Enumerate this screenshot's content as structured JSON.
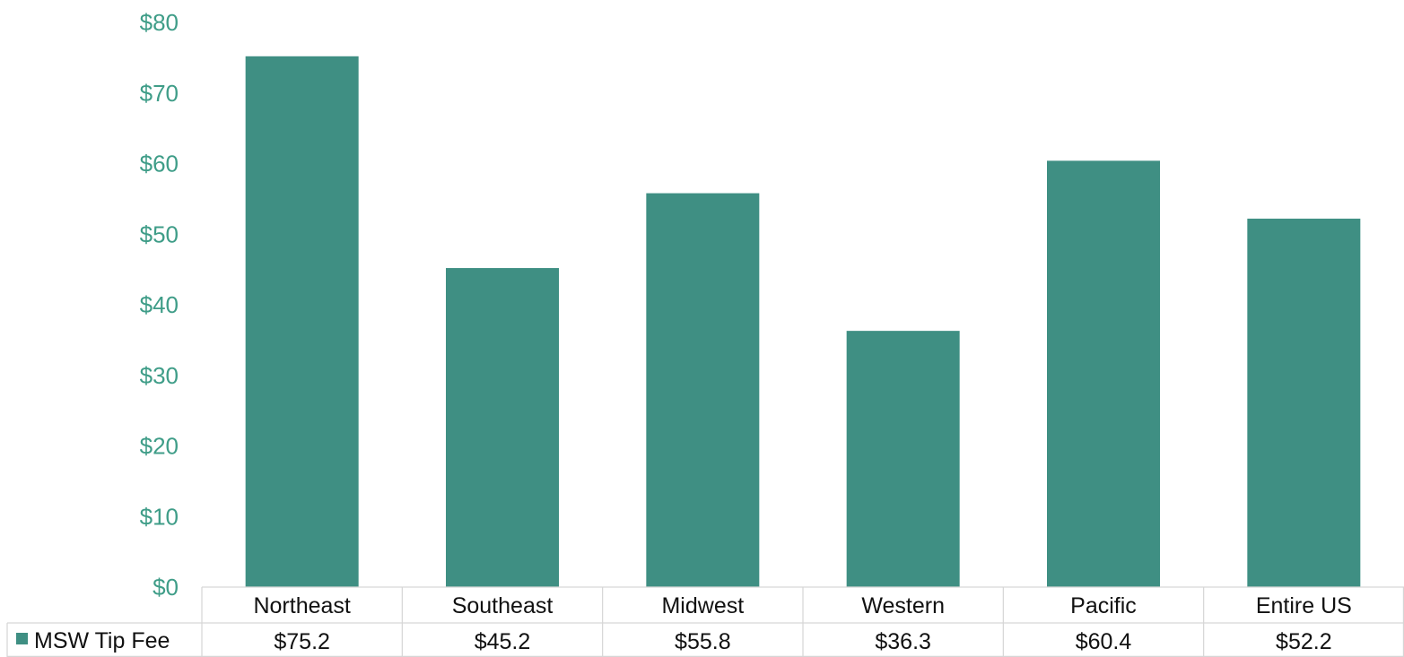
{
  "chart_data": {
    "type": "bar",
    "categories": [
      "Northeast",
      "Southeast",
      "Midwest",
      "Western",
      "Pacific",
      "Entire US"
    ],
    "series": [
      {
        "name": "MSW Tip Fee",
        "values": [
          75.2,
          45.2,
          55.8,
          36.3,
          60.4,
          52.2
        ],
        "value_labels": [
          "$75.2",
          "$45.2",
          "$55.8",
          "$36.3",
          "$60.4",
          "$52.2"
        ],
        "color": "#3f8f83"
      }
    ],
    "yticks": [
      "$0",
      "$10",
      "$20",
      "$30",
      "$40",
      "$50",
      "$60",
      "$70",
      "$80"
    ],
    "ylim": [
      0,
      80
    ],
    "grid": false,
    "data_table": true,
    "tick_color": "#3f9d88"
  }
}
